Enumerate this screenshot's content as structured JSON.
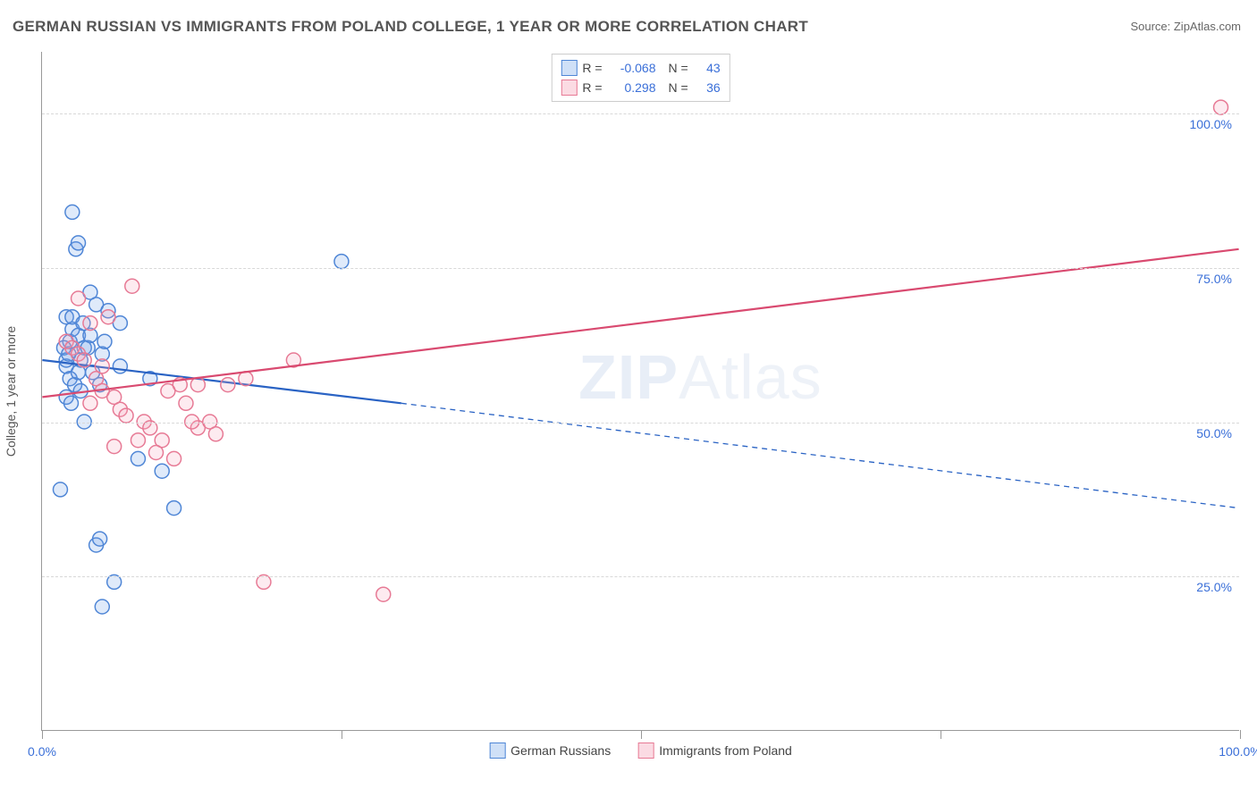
{
  "title": "GERMAN RUSSIAN VS IMMIGRANTS FROM POLAND COLLEGE, 1 YEAR OR MORE CORRELATION CHART",
  "source_label": "Source: ZipAtlas.com",
  "y_axis_title": "College, 1 year or more",
  "watermark_main": "ZIP",
  "watermark_sub": "Atlas",
  "chart": {
    "type": "scatter-correlation",
    "xlim": [
      0,
      100
    ],
    "ylim": [
      0,
      110
    ],
    "x_ticks": [
      0,
      25,
      50,
      75,
      100
    ],
    "x_tick_labels": [
      "0.0%",
      "",
      "",
      "",
      "100.0%"
    ],
    "y_gridlines": [
      25,
      50,
      75,
      100
    ],
    "y_tick_labels": [
      "25.0%",
      "50.0%",
      "75.0%",
      "100.0%"
    ],
    "background_color": "#ffffff",
    "grid_color": "#d8d8d8",
    "axis_color": "#999999",
    "tick_label_color": "#3a6fd8",
    "marker_radius": 8,
    "marker_fill_opacity": 0.22,
    "marker_stroke_width": 1.5,
    "line_width_solid": 2.2,
    "line_width_dashed": 1.3,
    "dash_pattern": "6,5"
  },
  "series": [
    {
      "name": "German Russians",
      "color": "#6fa0e6",
      "stroke": "#4f86d6",
      "line_color": "#2a63c4",
      "r_value": "-0.068",
      "n_value": "43",
      "trend": {
        "x1": 0,
        "y1": 60,
        "x_solid_end": 30,
        "y_solid_end": 53,
        "x2": 100,
        "y2": 36
      },
      "points": [
        [
          2.5,
          84
        ],
        [
          2.8,
          78
        ],
        [
          3.0,
          79
        ],
        [
          4.5,
          30
        ],
        [
          4.8,
          31
        ],
        [
          5.0,
          20
        ],
        [
          6.0,
          24
        ],
        [
          2.0,
          67
        ],
        [
          2.3,
          63
        ],
        [
          2.5,
          65
        ],
        [
          3.0,
          64
        ],
        [
          3.5,
          62
        ],
        [
          3.2,
          60
        ],
        [
          2.0,
          59
        ],
        [
          2.3,
          57
        ],
        [
          2.7,
          56
        ],
        [
          3.2,
          55
        ],
        [
          2.0,
          54
        ],
        [
          2.4,
          53
        ],
        [
          4.0,
          71
        ],
        [
          4.5,
          69
        ],
        [
          5.5,
          68
        ],
        [
          6.5,
          66
        ],
        [
          3.5,
          50
        ],
        [
          4.2,
          58
        ],
        [
          5.0,
          61
        ],
        [
          6.5,
          59
        ],
        [
          1.8,
          62
        ],
        [
          2.0,
          60
        ],
        [
          3.8,
          62
        ],
        [
          4.8,
          56
        ],
        [
          1.5,
          39
        ],
        [
          2.5,
          67
        ],
        [
          3.0,
          58
        ],
        [
          4.0,
          64
        ],
        [
          8.0,
          44
        ],
        [
          10.0,
          42
        ],
        [
          9.0,
          57
        ],
        [
          11.0,
          36
        ],
        [
          25.0,
          76
        ],
        [
          2.2,
          61
        ],
        [
          3.4,
          66
        ],
        [
          5.2,
          63
        ]
      ]
    },
    {
      "name": "Immigrants from Poland",
      "color": "#f4a6b9",
      "stroke": "#e77a95",
      "line_color": "#d94a70",
      "r_value": "0.298",
      "n_value": "36",
      "trend": {
        "x1": 0,
        "y1": 54,
        "x_solid_end": 100,
        "y_solid_end": 78,
        "x2": 100,
        "y2": 78
      },
      "points": [
        [
          98.5,
          101
        ],
        [
          28.5,
          22
        ],
        [
          18.5,
          24
        ],
        [
          2.0,
          63
        ],
        [
          2.5,
          62
        ],
        [
          3.0,
          61
        ],
        [
          3.5,
          60
        ],
        [
          3.0,
          70
        ],
        [
          4.0,
          66
        ],
        [
          5.5,
          67
        ],
        [
          7.5,
          72
        ],
        [
          4.5,
          57
        ],
        [
          5.0,
          55
        ],
        [
          6.0,
          54
        ],
        [
          6.5,
          52
        ],
        [
          7.0,
          51
        ],
        [
          8.5,
          50
        ],
        [
          9.0,
          49
        ],
        [
          10.0,
          47
        ],
        [
          11.5,
          56
        ],
        [
          13.0,
          56
        ],
        [
          15.5,
          56
        ],
        [
          17.0,
          57
        ],
        [
          13.0,
          49
        ],
        [
          14.0,
          50
        ],
        [
          10.5,
          55
        ],
        [
          12.0,
          53
        ],
        [
          12.5,
          50
        ],
        [
          14.5,
          48
        ],
        [
          8.0,
          47
        ],
        [
          9.5,
          45
        ],
        [
          11.0,
          44
        ],
        [
          6.0,
          46
        ],
        [
          21.0,
          60
        ],
        [
          5.0,
          59
        ],
        [
          4.0,
          53
        ]
      ]
    }
  ],
  "stats_legend": {
    "r_label": "R =",
    "n_label": "N ="
  },
  "bottom_legend": [
    {
      "swatch_fill": "#cfe0f7",
      "swatch_border": "#4f86d6",
      "label": "German Russians"
    },
    {
      "swatch_fill": "#fbdbe3",
      "swatch_border": "#e77a95",
      "label": "Immigrants from Poland"
    }
  ]
}
